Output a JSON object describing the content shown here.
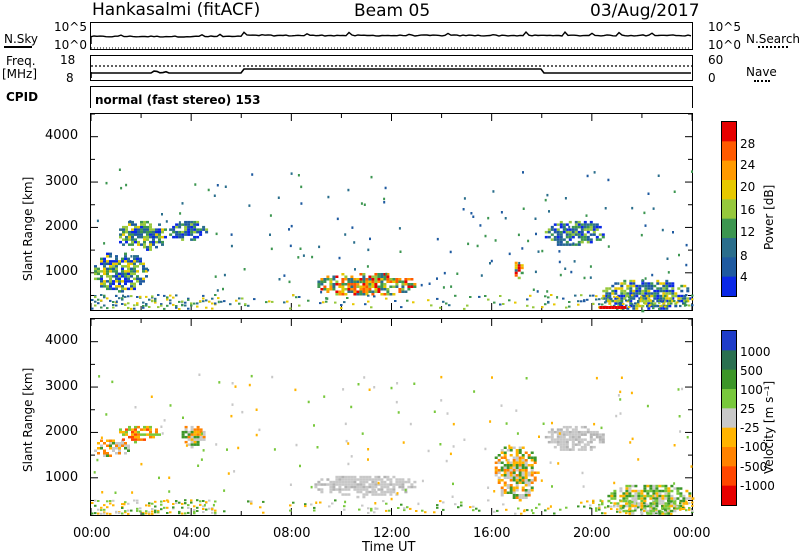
{
  "header": {
    "station": "Hankasalmi (fitACF)",
    "beam": "Beam 05",
    "date": "03/Aug/2017"
  },
  "panels": {
    "nsky": {
      "label": "N.Sky",
      "left_ticks": [
        "10^5",
        "10^0"
      ],
      "right_ticks": [
        "10^5",
        "10^0"
      ],
      "right_label": "N.Search"
    },
    "freq": {
      "label_top": "Freq.",
      "label_bottom": "[MHz]",
      "left_ticks": [
        "18",
        "8"
      ],
      "right_ticks": [
        "60",
        "0"
      ],
      "right_label": "Nave"
    },
    "cpid": {
      "label": "CPID",
      "value": "normal (fast stereo) 153"
    }
  },
  "axes": {
    "y_label": "Slant Range [km]",
    "x_label": "Time UT",
    "y_ticks": [
      "4000",
      "3000",
      "2000",
      "1000"
    ],
    "x_ticks": [
      "00:00",
      "04:00",
      "08:00",
      "12:00",
      "16:00",
      "20:00",
      "00:00"
    ]
  },
  "power_scale": {
    "label": "Power [dB]",
    "ticks": [
      "28",
      "24",
      "20",
      "16",
      "12",
      "8",
      "4"
    ],
    "colors": [
      "#e60000",
      "#ff5a00",
      "#ff9a00",
      "#e6c800",
      "#96c83c",
      "#3c9650",
      "#2a6e8c",
      "#1e5aa0",
      "#0a28e6"
    ]
  },
  "velocity_scale": {
    "label": "Velocity [m s⁻¹]",
    "ticks": [
      "1000",
      "500",
      "100",
      "25",
      "-25",
      "-100",
      "-500",
      "-1000"
    ],
    "colors": [
      "#1e3cc8",
      "#2a7050",
      "#3c9628",
      "#78c83c",
      "#c8c8c8",
      "#ffb400",
      "#ff8200",
      "#ff4600",
      "#e60000"
    ]
  },
  "chart_data": {
    "type": "heatmap",
    "x_range_hours": [
      0,
      24
    ],
    "y_range_km": [
      180,
      4500
    ],
    "power_patches": [
      {
        "t0": 0.0,
        "t1": 2.2,
        "r0": 600,
        "r1": 1500,
        "level": "mixed"
      },
      {
        "t0": 1.0,
        "t1": 3.0,
        "r0": 1500,
        "r1": 2200,
        "level": "mixed"
      },
      {
        "t0": 3.0,
        "t1": 4.6,
        "r0": 1700,
        "r1": 2200,
        "level": "low"
      },
      {
        "t0": 8.8,
        "t1": 13.0,
        "r0": 500,
        "r1": 1050,
        "level": "high"
      },
      {
        "t0": 16.8,
        "t1": 17.2,
        "r0": 900,
        "r1": 1300,
        "level": "high"
      },
      {
        "t0": 18.0,
        "t1": 20.5,
        "r0": 1600,
        "r1": 2200,
        "level": "low"
      },
      {
        "t0": 20.3,
        "t1": 24.0,
        "r0": 180,
        "r1": 900,
        "level": "mixed"
      }
    ],
    "velocity_patches": [
      {
        "t0": 0.0,
        "t1": 1.5,
        "r0": 1500,
        "r1": 1900,
        "vel": "-100"
      },
      {
        "t0": 1.0,
        "t1": 2.8,
        "r0": 1800,
        "r1": 2200,
        "vel": "-500"
      },
      {
        "t0": 3.5,
        "t1": 4.5,
        "r0": 1700,
        "r1": 2200,
        "vel": "-100"
      },
      {
        "t0": 8.8,
        "t1": 13.0,
        "r0": 600,
        "r1": 1100,
        "vel": "0"
      },
      {
        "t0": 16.0,
        "t1": 17.8,
        "r0": 500,
        "r1": 1800,
        "vel": "-100"
      },
      {
        "t0": 18.0,
        "t1": 20.5,
        "r0": 1600,
        "r1": 2200,
        "vel": "0"
      },
      {
        "t0": 20.5,
        "t1": 24.0,
        "r0": 200,
        "r1": 900,
        "vel": "100"
      }
    ]
  }
}
